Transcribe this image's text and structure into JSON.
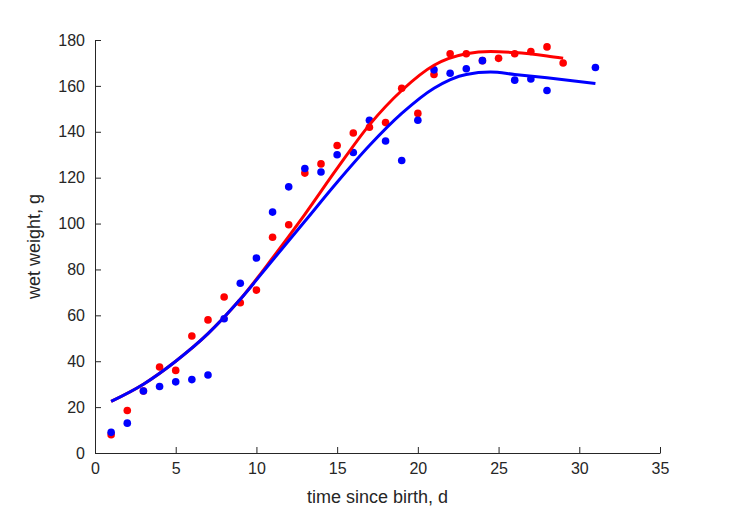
{
  "chart_data": {
    "type": "scatter",
    "x_label": "time since birth, d",
    "y_label": "wet weight, g",
    "xlim": [
      0,
      35
    ],
    "xticks": [
      0,
      5,
      10,
      15,
      20,
      25,
      30,
      35
    ],
    "ylim": [
      0,
      180
    ],
    "yticks": [
      0,
      20,
      40,
      60,
      80,
      100,
      120,
      140,
      160,
      180
    ],
    "grid": false,
    "series": [
      {
        "type": "scatter",
        "marker": "o",
        "color": "#ff0000",
        "x": [
          1,
          2,
          3,
          4,
          5,
          6,
          7,
          8,
          9,
          10,
          11,
          12,
          13,
          14,
          15,
          16,
          17,
          18,
          19,
          20,
          21,
          22,
          23,
          24,
          25,
          26,
          27,
          28,
          29
        ],
        "values": [
          8,
          18.5,
          27,
          37.5,
          36,
          51,
          58,
          68,
          65.5,
          71,
          94,
          99.5,
          122,
          126,
          134,
          139.5,
          142,
          144,
          159,
          148,
          165,
          174,
          174,
          171,
          172,
          174,
          175,
          177,
          170
        ]
      },
      {
        "type": "scatter",
        "marker": "o",
        "color": "#0000ff",
        "x": [
          1,
          2,
          3,
          4,
          5,
          6,
          7,
          8,
          9,
          10,
          11,
          12,
          13,
          14,
          15,
          16,
          17,
          18,
          19,
          20,
          21,
          22,
          23,
          24,
          26,
          27,
          28,
          31
        ],
        "values": [
          9,
          13,
          27,
          29,
          31,
          32,
          34,
          58.5,
          74,
          85,
          105,
          116,
          124,
          122.5,
          130,
          131,
          145,
          136,
          127.5,
          145,
          167,
          165.5,
          167.5,
          171,
          162.5,
          163,
          158,
          168
        ]
      },
      {
        "type": "line",
        "line_style": "solid",
        "color": "#ff0000",
        "x": [
          1,
          3,
          5,
          7,
          9,
          11,
          13,
          15,
          17,
          19,
          21,
          23,
          24.5,
          26,
          28,
          29
        ],
        "values": [
          22.5,
          30,
          40,
          52,
          67,
          85,
          104,
          124,
          143,
          158,
          169,
          174,
          175,
          174.5,
          173,
          172
        ]
      },
      {
        "type": "line",
        "line_style": "solid",
        "color": "#0000ff",
        "x": [
          1,
          3,
          5,
          7,
          9,
          11,
          13,
          15,
          17,
          19,
          21,
          23,
          24.5,
          26,
          28,
          31
        ],
        "values": [
          22.5,
          30,
          40,
          52,
          67,
          84,
          101,
          118,
          134,
          148,
          159,
          165,
          166,
          165,
          163.5,
          161
        ]
      }
    ]
  }
}
